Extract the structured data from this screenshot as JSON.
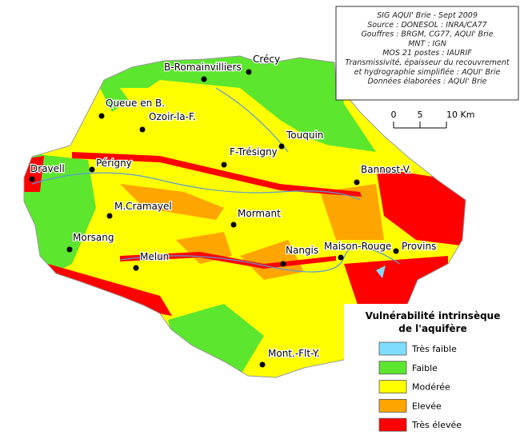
{
  "source_box": {
    "lines": [
      "SIG AQUI' Brie - Sept 2009",
      "Source : DONESOL : INRA/CA77",
      "Gouffres : BRGM, CG77, AQUI' Brie",
      "MNT : IGN",
      "MOS 21 postes : IAURIF",
      "Transmissivité, épaisseur du recouvrement",
      "et hydrographie simplifiée : AQUI' Brie",
      "Données élaborées : AQUI' Brie"
    ]
  },
  "scale_bar": {
    "labels": [
      "0",
      "5",
      "10 Km"
    ]
  },
  "towns": [
    "B-Romainvilliers",
    "Crécy",
    "Queue en B.",
    "Ozoir-la-F.",
    "Touquin",
    "F-Trésigny",
    "Dravell",
    "Périgny",
    "Bannost-V.",
    "M.Cramayel",
    "Mormant",
    "Morsang",
    "Nangis",
    "Maison-Rouge",
    "Provins",
    "Melun",
    "Mont.-Flt-Y."
  ],
  "legend": {
    "title": [
      "Vulnérabilité intrinsèque",
      "de l'aquifère"
    ],
    "items": [
      {
        "label": "Très faible",
        "color": "#7fdcff"
      },
      {
        "label": "Faible",
        "color": "#5ce62e"
      },
      {
        "label": "Modérée",
        "color": "#ffff00"
      },
      {
        "label": "Elevée",
        "color": "#ffa500"
      },
      {
        "label": "Très élevée",
        "color": "#ff0000"
      }
    ]
  }
}
